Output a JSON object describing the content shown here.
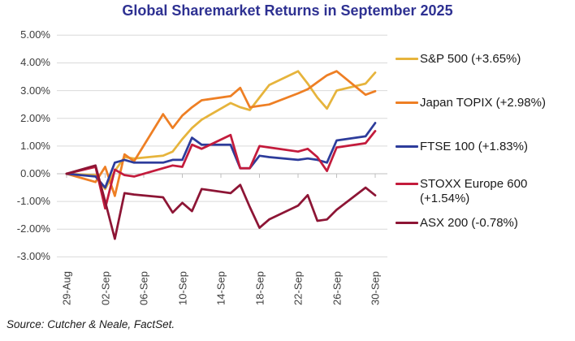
{
  "title": "Global Sharemarket Returns in September 2025",
  "source": "Source: Cutcher & Neale, FactSet.",
  "colors": {
    "title": "#2E3192",
    "grid": "#D9D9D9",
    "axis": "#BFBFBF",
    "tick_text": "#3D3D3D",
    "legend_text": "#1A1A1A",
    "background": "#FFFFFF"
  },
  "chart_data": {
    "type": "line",
    "title": "Global Sharemarket Returns in September 2025",
    "xlabel": "",
    "ylabel": "",
    "grid": true,
    "legend_position": "right",
    "x_axis": {
      "tick_labels": [
        "29-Aug",
        "02-Sep",
        "06-Sep",
        "10-Sep",
        "14-Sep",
        "18-Sep",
        "22-Sep",
        "26-Sep",
        "30-Sep"
      ],
      "tick_days": [
        0,
        4,
        8,
        12,
        16,
        20,
        24,
        28,
        32
      ]
    },
    "y_axis": {
      "tick_labels": [
        "5.00%",
        "4.00%",
        "3.00%",
        "2.00%",
        "1.00%",
        "0.00%",
        "-1.00%",
        "-2.00%",
        "-3.00%"
      ],
      "tick_values": [
        5,
        4,
        3,
        2,
        1,
        0,
        -1,
        -2,
        -3
      ],
      "ylim": [
        -3,
        5
      ],
      "unit": "percent"
    },
    "point_dates": [
      "29-Aug",
      "01-Sep",
      "02-Sep",
      "03-Sep",
      "04-Sep",
      "05-Sep",
      "08-Sep",
      "09-Sep",
      "10-Sep",
      "11-Sep",
      "12-Sep",
      "15-Sep",
      "16-Sep",
      "17-Sep",
      "18-Sep",
      "19-Sep",
      "22-Sep",
      "23-Sep",
      "24-Sep",
      "25-Sep",
      "26-Sep",
      "29-Sep",
      "30-Sep"
    ],
    "point_days": [
      0,
      3,
      4,
      5,
      6,
      7,
      10,
      11,
      12,
      13,
      14,
      17,
      18,
      19,
      20,
      21,
      24,
      25,
      26,
      27,
      28,
      31,
      32
    ],
    "series": [
      {
        "name": "S&P 500",
        "legend_label": "S&P 500 (+3.65%)",
        "color": "#E6B43C",
        "values": [
          0.0,
          -0.05,
          -0.55,
          0.1,
          0.6,
          0.55,
          0.65,
          0.8,
          1.25,
          1.65,
          1.95,
          2.55,
          2.4,
          2.3,
          2.75,
          3.2,
          3.7,
          3.25,
          2.75,
          2.35,
          3.0,
          3.25,
          3.65
        ]
      },
      {
        "name": "Japan TOPIX",
        "legend_label": "Japan TOPIX (+2.98%)",
        "color": "#EE7F24",
        "values": [
          0.0,
          -0.3,
          0.25,
          -0.8,
          0.7,
          0.45,
          2.15,
          1.65,
          2.1,
          2.4,
          2.65,
          2.8,
          3.1,
          2.4,
          2.45,
          2.5,
          2.9,
          3.05,
          3.3,
          3.55,
          3.7,
          2.85,
          2.98
        ]
      },
      {
        "name": "FTSE 100",
        "legend_label": "FTSE 100 (+1.83%)",
        "color": "#2D3C9B",
        "values": [
          0.0,
          -0.1,
          -0.5,
          0.4,
          0.5,
          0.4,
          0.4,
          0.5,
          0.5,
          1.3,
          1.05,
          1.05,
          0.2,
          0.2,
          0.65,
          0.6,
          0.5,
          0.55,
          0.5,
          0.4,
          1.2,
          1.35,
          1.83
        ]
      },
      {
        "name": "STOXX Europe 600",
        "legend_label": "STOXX Europe 600 (+1.54%)",
        "color": "#C31B3C",
        "values": [
          0.0,
          0.25,
          -1.25,
          0.15,
          -0.05,
          -0.1,
          0.2,
          0.3,
          0.25,
          1.05,
          0.9,
          1.4,
          0.2,
          0.2,
          1.0,
          0.95,
          0.8,
          0.9,
          0.6,
          0.1,
          0.95,
          1.1,
          1.54
        ]
      },
      {
        "name": "ASX 200",
        "legend_label": "ASX 200 (-0.78%)",
        "color": "#8D1535",
        "values": [
          0.0,
          0.3,
          -1.0,
          -2.35,
          -0.7,
          -0.75,
          -0.85,
          -1.4,
          -1.05,
          -1.35,
          -0.55,
          -0.7,
          -0.4,
          -1.2,
          -1.95,
          -1.65,
          -1.15,
          -0.77,
          -1.7,
          -1.65,
          -1.3,
          -0.5,
          -0.78
        ]
      }
    ]
  }
}
